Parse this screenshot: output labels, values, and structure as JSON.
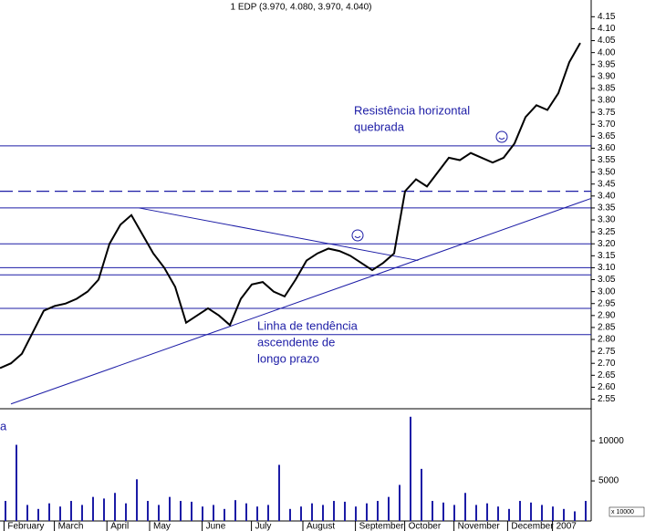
{
  "chart_data": [
    {
      "type": "line",
      "title": "1 EDP (3.970, 4.080, 3.970, 4.040)",
      "color": "#000000",
      "x": [
        0,
        1,
        2,
        3,
        4,
        5,
        6,
        7,
        8,
        9,
        10,
        11,
        12,
        13,
        14,
        15,
        16,
        17,
        18,
        19,
        20,
        21,
        22,
        23,
        24,
        25,
        26,
        27,
        28,
        29,
        30,
        31,
        32,
        33,
        34,
        35,
        36,
        37,
        38,
        39,
        40,
        41,
        42,
        43,
        44,
        45,
        46,
        47,
        48,
        49,
        50,
        51,
        52,
        53
      ],
      "values": [
        2.68,
        2.7,
        2.74,
        2.83,
        2.92,
        2.94,
        2.95,
        2.97,
        3.0,
        3.05,
        3.2,
        3.28,
        3.32,
        3.24,
        3.16,
        3.1,
        3.02,
        2.87,
        2.9,
        2.93,
        2.9,
        2.86,
        2.97,
        3.03,
        3.04,
        3.0,
        2.98,
        3.05,
        3.13,
        3.16,
        3.18,
        3.17,
        3.15,
        3.12,
        3.09,
        3.12,
        3.16,
        3.42,
        3.47,
        3.44,
        3.5,
        3.56,
        3.55,
        3.58,
        3.56,
        3.54,
        3.56,
        3.62,
        3.73,
        3.78,
        3.76,
        3.83,
        3.96,
        4.04
      ],
      "xlim": [
        0,
        54
      ],
      "ylim": [
        2.51,
        4.22
      ],
      "yticks": [
        2.55,
        {
          "value": 2.6,
          "label": "2.60"
        },
        2.65,
        {
          "value": 2.7,
          "label": "2.70"
        },
        2.75,
        {
          "value": 2.8,
          "label": "2.80"
        },
        2.85,
        {
          "value": 2.9,
          "label": "2.90"
        },
        2.95,
        {
          "value": 3,
          "label": "3.00"
        },
        3.05,
        {
          "value": 3.1,
          "label": "3.10"
        },
        3.15,
        {
          "value": 3.2,
          "label": "3.20"
        },
        3.25,
        {
          "value": 3.3,
          "label": "3.30"
        },
        3.35,
        {
          "value": 3.4,
          "label": "3.40"
        },
        3.45,
        {
          "value": 3.5,
          "label": "3.50"
        },
        3.55,
        {
          "value": 3.6,
          "label": "3.60"
        },
        3.65,
        {
          "value": 3.7,
          "label": "3.70"
        },
        3.75,
        {
          "value": 3.8,
          "label": "3.80"
        },
        3.85,
        {
          "value": 3.9,
          "label": "3.90"
        },
        3.95,
        {
          "value": 4,
          "label": "4.00"
        },
        4.05,
        {
          "value": 4.1,
          "label": "4.10"
        },
        4.15
      ],
      "levels": [
        3.61,
        3.35,
        3.2,
        3.1,
        3.07,
        2.93,
        2.82
      ],
      "dashed_levels": [
        3.42
      ],
      "level_color": "#1c1ca6",
      "trendlines": [
        {
          "x": [
            1,
            54
          ],
          "y": [
            2.53,
            3.39
          ]
        },
        {
          "x": [
            12.7,
            38.2
          ],
          "y": [
            3.35,
            3.13
          ]
        }
      ],
      "annotations": [
        [
          "Resistência horizontal",
          "quebrada"
        ],
        [
          "Linha de tendência",
          "ascendente de",
          "longo prazo"
        ],
        [
          "a"
        ]
      ]
    },
    {
      "type": "bar",
      "color": "#1c1ca6",
      "unit_label": "x 10000",
      "x": [
        0,
        1,
        2,
        3,
        4,
        5,
        6,
        7,
        8,
        9,
        10,
        11,
        12,
        13,
        14,
        15,
        16,
        17,
        18,
        19,
        20,
        21,
        22,
        23,
        24,
        25,
        26,
        27,
        28,
        29,
        30,
        31,
        32,
        33,
        34,
        35,
        36,
        37,
        38,
        39,
        40,
        41,
        42,
        43,
        44,
        45,
        46,
        47,
        48,
        49,
        50,
        51,
        52,
        53
      ],
      "values": [
        2500,
        9500,
        2000,
        1500,
        2200,
        1800,
        2500,
        2000,
        3000,
        2800,
        3500,
        2200,
        5200,
        2500,
        2000,
        3000,
        2500,
        2400,
        1800,
        2000,
        1500,
        2600,
        2200,
        1800,
        2000,
        7000,
        1500,
        1800,
        2200,
        2000,
        2500,
        2400,
        1800,
        2200,
        2500,
        3000,
        4500,
        13000,
        6500,
        2500,
        2300,
        2000,
        3500,
        2000,
        2200,
        1800,
        1500,
        2500,
        2300,
        2000,
        1800,
        1500,
        1200,
        2500
      ],
      "xlim": [
        0,
        54
      ],
      "ylim": [
        0,
        14000
      ],
      "yticks": [
        5000,
        10000
      ],
      "xticks": [
        {
          "value": 0.7,
          "label": "February"
        },
        {
          "value": 5.3,
          "label": "March"
        },
        {
          "value": 10.1,
          "label": "April"
        },
        {
          "value": 14,
          "label": "May"
        },
        {
          "value": 18.8,
          "label": "June"
        },
        {
          "value": 23.3,
          "label": "July"
        },
        {
          "value": 28,
          "label": "August"
        },
        {
          "value": 32.8,
          "label": "September"
        },
        {
          "value": 37.3,
          "label": "October"
        },
        {
          "value": 41.8,
          "label": "November"
        },
        {
          "value": 46.7,
          "label": "December"
        },
        {
          "value": 50.8,
          "label": "2007"
        }
      ]
    }
  ]
}
